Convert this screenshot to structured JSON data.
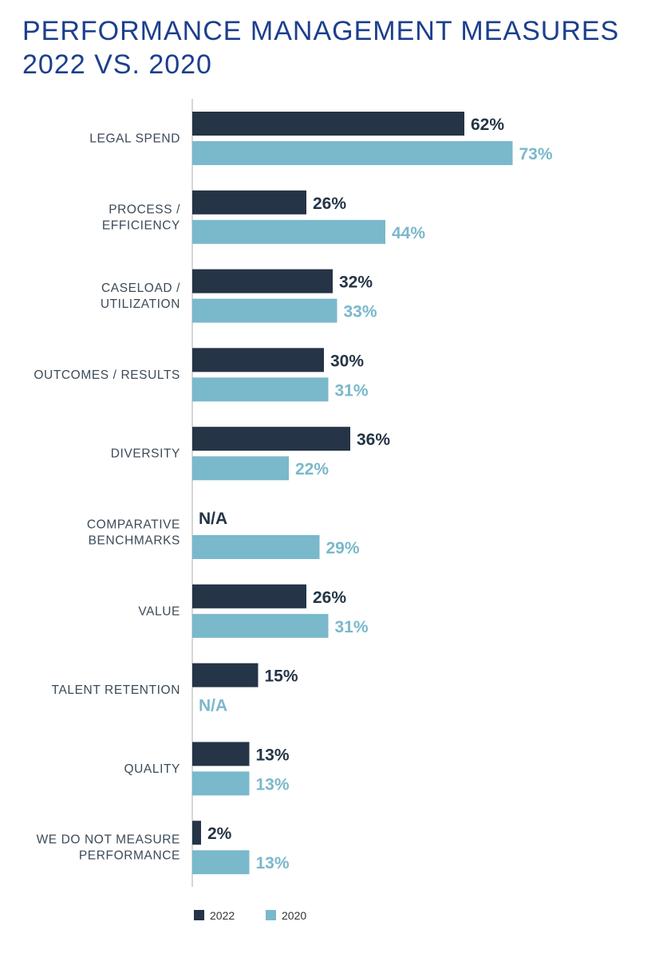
{
  "title_line1": "PERFORMANCE MANAGEMENT MEASURES",
  "title_line2": "2022 VS. 2020",
  "colors": {
    "series_2022": "#253446",
    "series_2020": "#7ab8cc",
    "title": "#1c3f8e",
    "axis": "#c8c8c8"
  },
  "chart_data": {
    "type": "bar",
    "orientation": "horizontal",
    "title": "PERFORMANCE MANAGEMENT MEASURES 2022 VS. 2020",
    "xlim": [
      0,
      100
    ],
    "grid": false,
    "legend_position": "bottom",
    "categories": [
      [
        "LEGAL SPEND"
      ],
      [
        "PROCESS /",
        "EFFICIENCY"
      ],
      [
        "CASELOAD /",
        "UTILIZATION"
      ],
      [
        "OUTCOMES / RESULTS"
      ],
      [
        "DIVERSITY"
      ],
      [
        "COMPARATIVE",
        "BENCHMARKS"
      ],
      [
        "VALUE"
      ],
      [
        "TALENT RETENTION"
      ],
      [
        "QUALITY"
      ],
      [
        "WE DO NOT MEASURE",
        "PERFORMANCE"
      ]
    ],
    "series": [
      {
        "name": "2022",
        "color": "#253446",
        "values": [
          62,
          26,
          32,
          30,
          36,
          null,
          26,
          15,
          13,
          2
        ],
        "labels": [
          "62%",
          "26%",
          "32%",
          "30%",
          "36%",
          "N/A",
          "26%",
          "15%",
          "13%",
          "2%"
        ]
      },
      {
        "name": "2020",
        "color": "#7ab8cc",
        "values": [
          73,
          44,
          33,
          31,
          22,
          29,
          31,
          null,
          13,
          13
        ],
        "labels": [
          "73%",
          "44%",
          "33%",
          "31%",
          "22%",
          "29%",
          "31%",
          "N/A",
          "13%",
          "13%"
        ]
      }
    ]
  }
}
